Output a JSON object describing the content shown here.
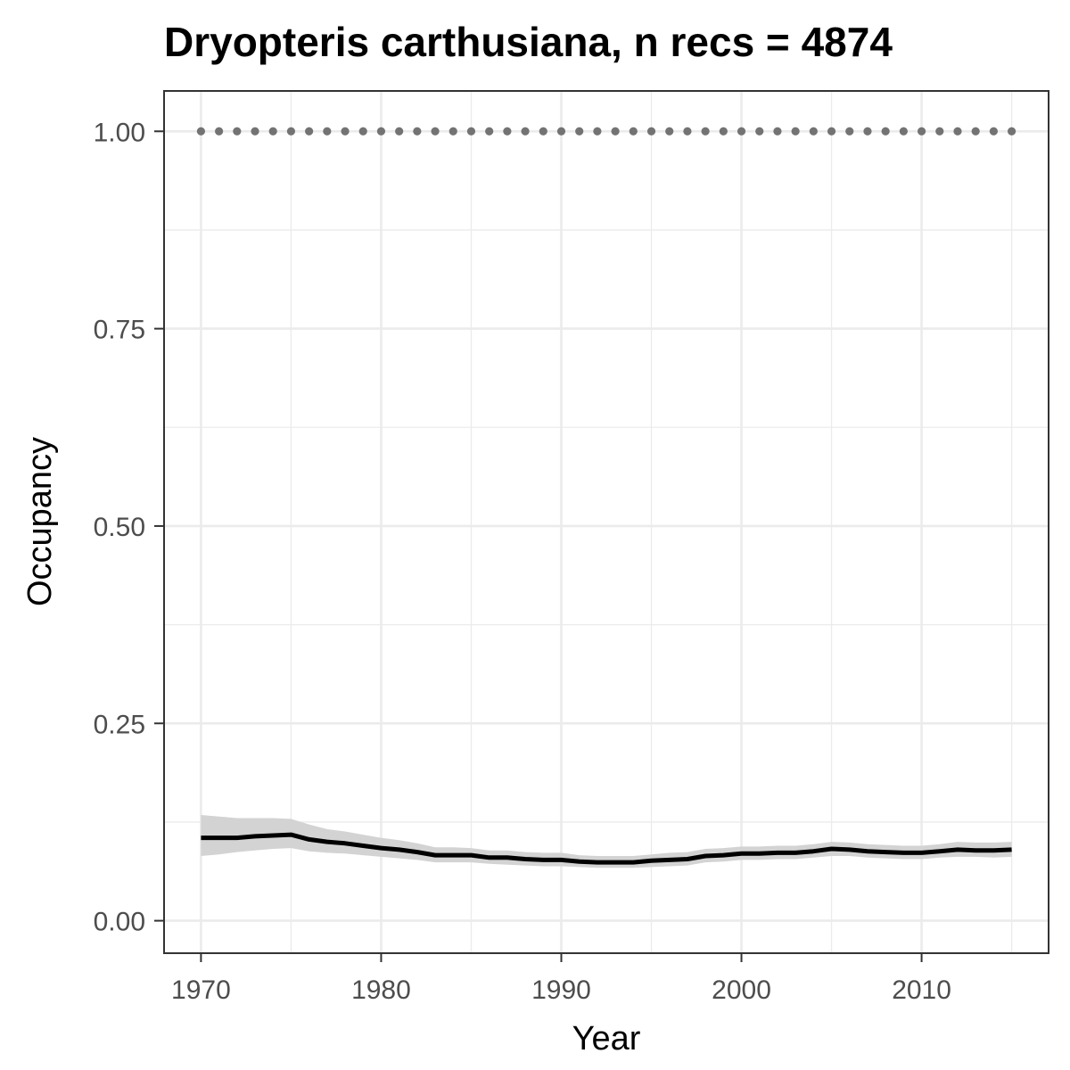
{
  "chart_data": {
    "type": "line",
    "title": "Dryopteris carthusiana, n recs = 4874",
    "xlabel": "Year",
    "ylabel": "Occupancy",
    "xlim": [
      1968,
      2017
    ],
    "ylim": [
      -0.04,
      1.05
    ],
    "x_ticks": [
      1970,
      1980,
      1990,
      2000,
      2010
    ],
    "x_tick_labels": [
      "1970",
      "1980",
      "1990",
      "2000",
      "2010"
    ],
    "y_ticks": [
      0,
      0.25,
      0.5,
      0.75,
      1.0
    ],
    "y_tick_labels": [
      "0.00",
      "0.25",
      "0.50",
      "0.75",
      "1.00"
    ],
    "grid": true,
    "legend": "none",
    "colors": {
      "line": "#000000",
      "ribbon": "#d3d3d3",
      "points": "#737373",
      "grid": "#ebebeb",
      "panel_border": "#333333"
    },
    "series": [
      {
        "type": "line",
        "x": [
          1970,
          1971,
          1972,
          1973,
          1974,
          1975,
          1976,
          1977,
          1978,
          1979,
          1980,
          1981,
          1982,
          1983,
          1984,
          1985,
          1986,
          1987,
          1988,
          1989,
          1990,
          1991,
          1992,
          1993,
          1994,
          1995,
          1996,
          1997,
          1998,
          1999,
          2000,
          2001,
          2002,
          2003,
          2004,
          2005,
          2006,
          2007,
          2008,
          2009,
          2010,
          2011,
          2012,
          2013,
          2014,
          2015
        ],
        "y": [
          0.105,
          0.105,
          0.105,
          0.107,
          0.108,
          0.109,
          0.103,
          0.1,
          0.098,
          0.095,
          0.092,
          0.09,
          0.087,
          0.083,
          0.083,
          0.083,
          0.08,
          0.08,
          0.078,
          0.077,
          0.077,
          0.075,
          0.074,
          0.074,
          0.074,
          0.076,
          0.077,
          0.078,
          0.082,
          0.083,
          0.085,
          0.085,
          0.086,
          0.086,
          0.088,
          0.091,
          0.09,
          0.088,
          0.087,
          0.086,
          0.086,
          0.088,
          0.09,
          0.089,
          0.089,
          0.09
        ],
        "lower": [
          0.082,
          0.084,
          0.087,
          0.089,
          0.091,
          0.092,
          0.088,
          0.086,
          0.085,
          0.083,
          0.081,
          0.079,
          0.077,
          0.074,
          0.074,
          0.074,
          0.072,
          0.071,
          0.07,
          0.069,
          0.069,
          0.068,
          0.067,
          0.067,
          0.067,
          0.068,
          0.069,
          0.07,
          0.074,
          0.075,
          0.077,
          0.077,
          0.078,
          0.078,
          0.08,
          0.082,
          0.082,
          0.08,
          0.079,
          0.078,
          0.078,
          0.08,
          0.081,
          0.081,
          0.08,
          0.081
        ],
        "upper": [
          0.134,
          0.132,
          0.13,
          0.13,
          0.13,
          0.129,
          0.122,
          0.116,
          0.113,
          0.109,
          0.105,
          0.102,
          0.098,
          0.093,
          0.093,
          0.092,
          0.089,
          0.089,
          0.087,
          0.086,
          0.086,
          0.083,
          0.082,
          0.082,
          0.082,
          0.084,
          0.086,
          0.087,
          0.091,
          0.092,
          0.094,
          0.094,
          0.095,
          0.095,
          0.097,
          0.1,
          0.099,
          0.097,
          0.096,
          0.095,
          0.095,
          0.097,
          0.1,
          0.099,
          0.099,
          0.1
        ]
      },
      {
        "type": "points",
        "x": [
          1970,
          1971,
          1972,
          1973,
          1974,
          1975,
          1976,
          1977,
          1978,
          1979,
          1980,
          1981,
          1982,
          1983,
          1984,
          1985,
          1986,
          1987,
          1988,
          1989,
          1990,
          1991,
          1992,
          1993,
          1994,
          1995,
          1996,
          1997,
          1998,
          1999,
          2000,
          2001,
          2002,
          2003,
          2004,
          2005,
          2006,
          2007,
          2008,
          2009,
          2010,
          2011,
          2012,
          2013,
          2014,
          2015
        ],
        "y": [
          1,
          1,
          1,
          1,
          1,
          1,
          1,
          1,
          1,
          1,
          1,
          1,
          1,
          1,
          1,
          1,
          1,
          1,
          1,
          1,
          1,
          1,
          1,
          1,
          1,
          1,
          1,
          1,
          1,
          1,
          1,
          1,
          1,
          1,
          1,
          1,
          1,
          1,
          1,
          1,
          1,
          1,
          1,
          1,
          1,
          1
        ]
      }
    ]
  }
}
